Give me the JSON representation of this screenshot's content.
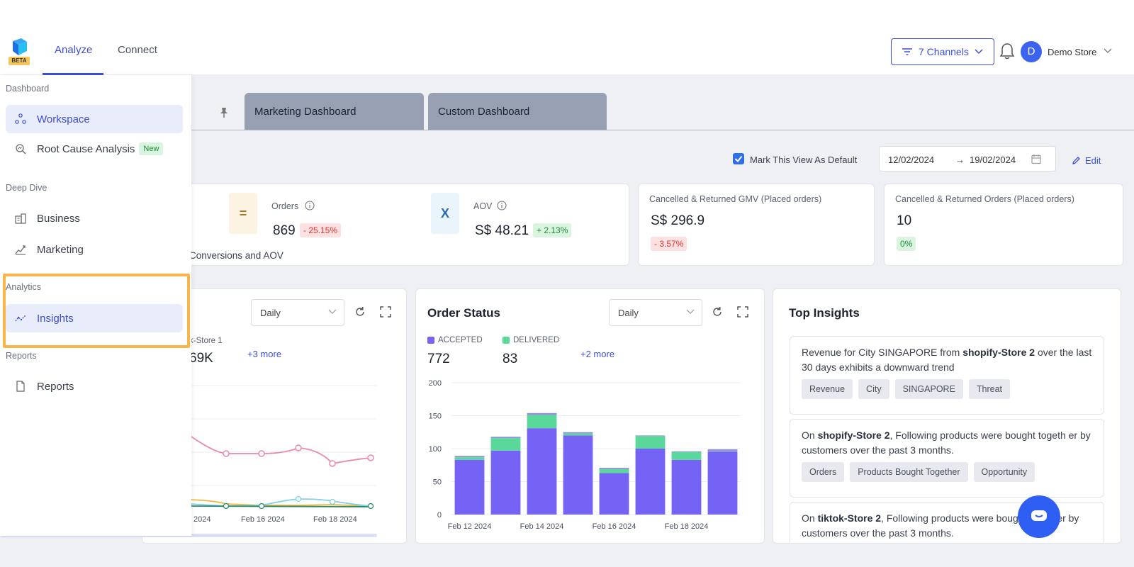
{
  "header": {
    "logo_badge": "BETA",
    "tabs": [
      "Analyze",
      "Connect"
    ],
    "channels_label": "7 Channels",
    "avatar_initial": "D",
    "store_name": "Demo Store"
  },
  "sidebar": {
    "sections": [
      {
        "title": "Dashboard",
        "items": [
          {
            "label": "Workspace",
            "icon": "workspace-icon"
          },
          {
            "label": "Root Cause Analysis",
            "icon": "root-cause-icon",
            "badge": "New"
          }
        ]
      },
      {
        "title": "Deep Dive",
        "items": [
          {
            "label": "Business",
            "icon": "business-icon"
          },
          {
            "label": "Marketing",
            "icon": "marketing-icon"
          }
        ]
      },
      {
        "title": "Analytics",
        "items": [
          {
            "label": "Insights",
            "icon": "insights-icon"
          }
        ]
      },
      {
        "title": "Reports",
        "items": [
          {
            "label": "Reports",
            "icon": "reports-icon"
          }
        ]
      }
    ]
  },
  "dashboard_tabs": [
    "Marketing Dashboard",
    "Custom Dashboard"
  ],
  "controls": {
    "default_label": "Mark This View As Default",
    "date_from": "12/02/2024",
    "date_arrow": "→",
    "date_to": "19/02/2024",
    "edit_label": "Edit"
  },
  "kpis": {
    "partial_caption": "Conversions and AOV",
    "equals_sign": "=",
    "times_sign": "X",
    "orders_label": "Orders",
    "orders_value": "869",
    "orders_change": "- 25.15%",
    "aov_label": "AOV",
    "aov_value": "S$ 48.21",
    "aov_change": "+ 2.13%",
    "cancelled_gmv_label": "Cancelled & Returned GMV (Placed orders)",
    "cancelled_gmv_value": "S$ 296.9",
    "cancelled_gmv_change": "- 3.57%",
    "cancelled_orders_label": "Cancelled & Returned Orders (Placed orders)",
    "cancelled_orders_value": "10",
    "cancelled_orders_change": "0%"
  },
  "left_chart": {
    "period": "Daily",
    "legend_partial": "k-Store 1",
    "value_partial": "69K",
    "more_label": "+3 more",
    "x_ticks": [
      "2024",
      "Feb 16 2024",
      "Feb 18 2024"
    ]
  },
  "order_status": {
    "title": "Order Status",
    "period": "Daily",
    "legend": [
      {
        "name": "ACCEPTED",
        "value": "772",
        "color": "#7463f5"
      },
      {
        "name": "DELIVERED",
        "value": "83",
        "color": "#5ad89c"
      }
    ],
    "more_label": "+2 more"
  },
  "chart_data": {
    "type": "bar",
    "stacked": true,
    "categories": [
      "Feb 12 2024",
      "Feb 13 2024",
      "Feb 14 2024",
      "Feb 15 2024",
      "Feb 16 2024",
      "Feb 17 2024",
      "Feb 18 2024",
      "Feb 19 2024"
    ],
    "x_tick_labels": [
      "Feb 12 2024",
      "Feb 14 2024",
      "Feb 16 2024",
      "Feb 18 2024"
    ],
    "series": [
      {
        "name": "ACCEPTED",
        "color": "#7463f5",
        "values": [
          83,
          97,
          131,
          120,
          63,
          100,
          83,
          95
        ]
      },
      {
        "name": "DELIVERED",
        "color": "#5ad89c",
        "values": [
          4,
          19,
          20,
          3,
          6,
          19,
          12,
          0
        ]
      },
      {
        "name": "",
        "color": "#8f94d6",
        "values": [
          2,
          2,
          3,
          2,
          2,
          1,
          1,
          4
        ]
      }
    ],
    "yticks": [
      0,
      50,
      100,
      150,
      200
    ],
    "ylim": [
      0,
      200
    ]
  },
  "insights": {
    "title": "Top Insights",
    "items": [
      {
        "pre": "Revenue for City SINGAPORE from ",
        "bold": "shopify-Store 2",
        "post": " over the last 30 days exhibits a downward trend",
        "tags": [
          "Revenue",
          "City",
          "SINGAPORE",
          "Threat"
        ]
      },
      {
        "pre": "On ",
        "bold": "shopify-Store 2",
        "post": ", Following products were bought togeth er by customers over the past 3 months.",
        "tags": [
          "Orders",
          "Products Bought Together",
          "Opportunity"
        ]
      },
      {
        "pre": "On ",
        "bold": "tiktok-Store 2",
        "post": ", Following products were bought together by customers over the past 3 months.",
        "tags": []
      }
    ]
  }
}
